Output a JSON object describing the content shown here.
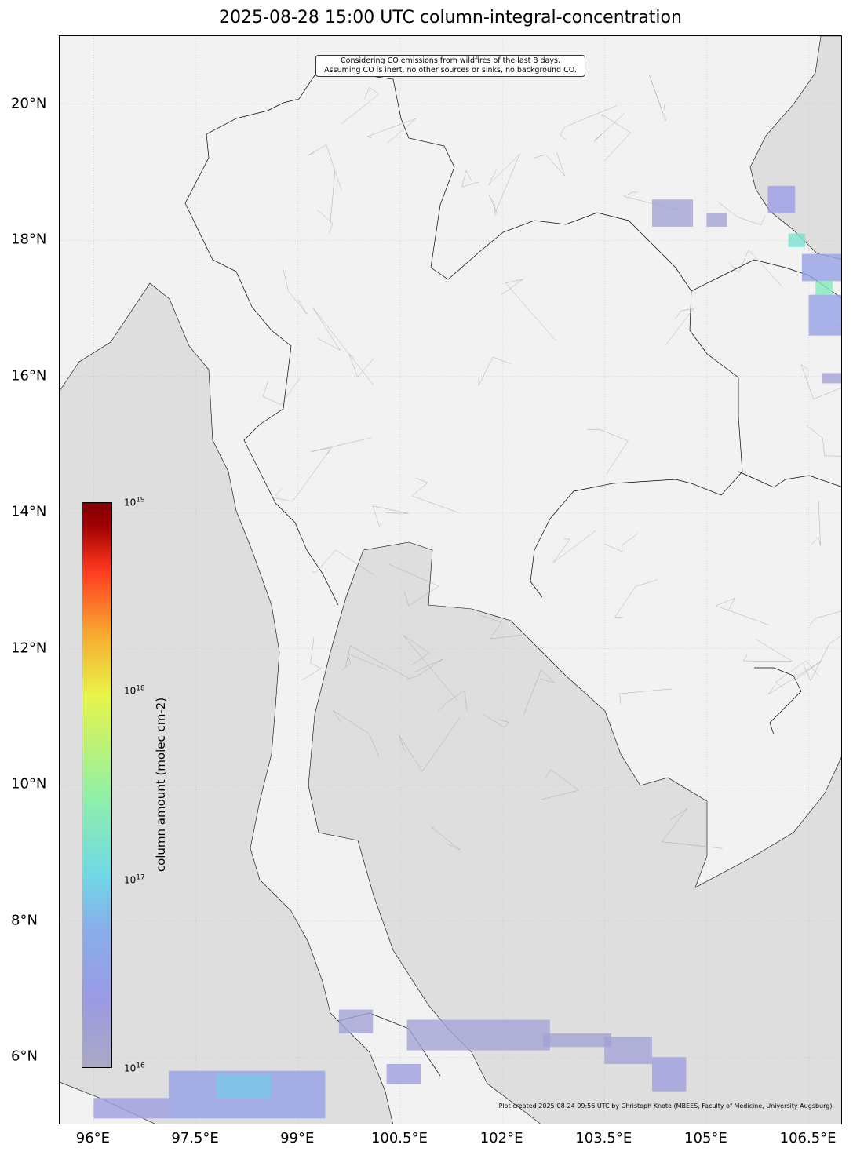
{
  "title": "2025-08-28 15:00 UTC column-integral-concentration",
  "note": [
    "Considering CO emissions from wildfires of the last 8 days.",
    "Assuming CO is inert, no other sources or sinks, no background CO."
  ],
  "credit": "Plot created 2025-08-24 09:56 UTC by Christoph Knote (MBEES, Faculty of Medicine, University Augsburg).",
  "x_ticks": [
    "96°E",
    "97.5°E",
    "99°E",
    "100.5°E",
    "102°E",
    "103.5°E",
    "105°E",
    "106.5°E"
  ],
  "y_ticks": [
    "20°N",
    "18°N",
    "16°N",
    "14°N",
    "12°N",
    "10°N",
    "8°N",
    "6°N"
  ],
  "colorbar": {
    "label": "column amount (molec cm-2)",
    "scale": "log",
    "range": [
      1e+16,
      1e+19
    ],
    "ticks": [
      {
        "base": "10",
        "exp": "16"
      },
      {
        "base": "10",
        "exp": "17"
      },
      {
        "base": "10",
        "exp": "18"
      },
      {
        "base": "10",
        "exp": "19"
      }
    ],
    "colormap": "jet-like (lavender-blue-cyan-green-yellow-red-darkred)"
  },
  "colors": {
    "sea": "#dedede",
    "land": "#f2f2f2",
    "rivers": "#cfe6f5"
  },
  "extent": {
    "lon": [
      95.5,
      107.0
    ],
    "lat": [
      5.0,
      21.0
    ]
  },
  "plume_cells": [
    {
      "lon": [
        97.1,
        99.4
      ],
      "lat": [
        5.1,
        5.8
      ],
      "value": 3e+16
    },
    {
      "lon": [
        97.8,
        98.6
      ],
      "lat": [
        5.4,
        5.75
      ],
      "value": 8e+16
    },
    {
      "lon": [
        96.0,
        97.1
      ],
      "lat": [
        5.1,
        5.4
      ],
      "value": 2e+16
    },
    {
      "lon": [
        99.6,
        100.1
      ],
      "lat": [
        6.35,
        6.7
      ],
      "value": 1.5e+16
    },
    {
      "lon": [
        100.6,
        102.7
      ],
      "lat": [
        6.1,
        6.55
      ],
      "value": 1.5e+16
    },
    {
      "lon": [
        102.6,
        103.6
      ],
      "lat": [
        6.15,
        6.35
      ],
      "value": 1.5e+16
    },
    {
      "lon": [
        103.5,
        104.2
      ],
      "lat": [
        5.9,
        6.3
      ],
      "value": 1.5e+16
    },
    {
      "lon": [
        104.2,
        104.7
      ],
      "lat": [
        5.5,
        6.0
      ],
      "value": 2e+16
    },
    {
      "lon": [
        100.3,
        100.8
      ],
      "lat": [
        5.6,
        5.9
      ],
      "value": 2e+16
    },
    {
      "lon": [
        104.2,
        104.8
      ],
      "lat": [
        18.2,
        18.6
      ],
      "value": 1.5e+16
    },
    {
      "lon": [
        105.0,
        105.3
      ],
      "lat": [
        18.2,
        18.4
      ],
      "value": 1.5e+16
    },
    {
      "lon": [
        105.9,
        106.3
      ],
      "lat": [
        18.4,
        18.8
      ],
      "value": 2.5e+16
    },
    {
      "lon": [
        106.2,
        106.45
      ],
      "lat": [
        17.9,
        18.1
      ],
      "value": 1.5e+17
    },
    {
      "lon": [
        106.4,
        107.0
      ],
      "lat": [
        17.4,
        17.8
      ],
      "value": 3e+16
    },
    {
      "lon": [
        106.6,
        106.85
      ],
      "lat": [
        17.2,
        17.4
      ],
      "value": 2e+17
    },
    {
      "lon": [
        106.5,
        107.0
      ],
      "lat": [
        16.6,
        17.2
      ],
      "value": 3e+16
    },
    {
      "lon": [
        106.7,
        107.0
      ],
      "lat": [
        15.9,
        16.05
      ],
      "value": 1.5e+16
    }
  ]
}
